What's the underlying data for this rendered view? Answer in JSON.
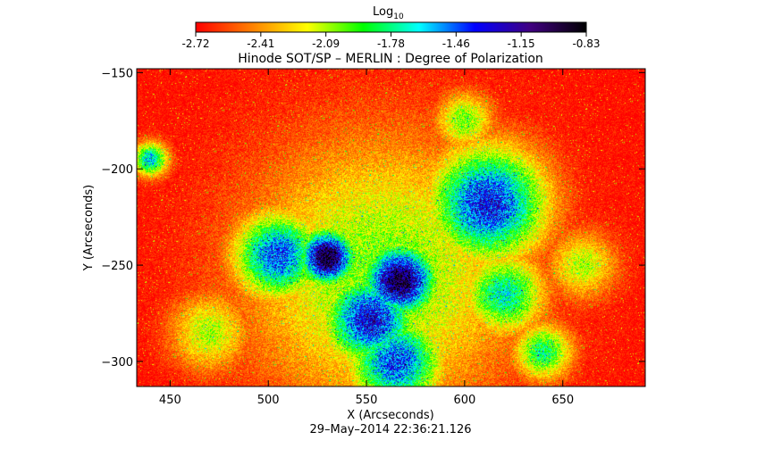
{
  "colorbar": {
    "title_main": "Log",
    "title_sub": "10",
    "ticks": [
      "-2.72",
      "-2.41",
      "-2.09",
      "-1.78",
      "-1.46",
      "-1.15",
      "-0.83"
    ],
    "range": [
      -2.72,
      -0.83
    ],
    "colormap": [
      "#ff0000",
      "#ff7f00",
      "#ffff00",
      "#00ff00",
      "#00ffff",
      "#0000ff",
      "#400080",
      "#000000"
    ]
  },
  "chart_data": {
    "type": "heatmap",
    "title": "Hinode SOT/SP – MERLIN : Degree of Polarization",
    "xlabel": "X (Arcseconds)",
    "ylabel": "Y (Arcseconds)",
    "xlim": [
      433,
      692
    ],
    "ylim": [
      -313,
      -148
    ],
    "xticks": [
      450,
      500,
      550,
      600,
      650
    ],
    "yticks": [
      -150,
      -200,
      -250,
      -300
    ],
    "value_label": "Log10 degree of polarization",
    "value_range": [
      -2.72,
      -0.83
    ],
    "background_level": -2.7,
    "features": [
      {
        "x": 558,
        "y": -255,
        "sigma": 48,
        "peak": -2.0
      },
      {
        "x": 530,
        "y": -246,
        "sigma": 10,
        "peak": -0.9
      },
      {
        "x": 567,
        "y": -258,
        "sigma": 13,
        "peak": -0.95
      },
      {
        "x": 552,
        "y": -278,
        "sigma": 16,
        "peak": -1.25
      },
      {
        "x": 612,
        "y": -218,
        "sigma": 20,
        "peak": -1.3
      },
      {
        "x": 505,
        "y": -245,
        "sigma": 15,
        "peak": -1.4
      },
      {
        "x": 620,
        "y": -265,
        "sigma": 14,
        "peak": -1.7
      },
      {
        "x": 565,
        "y": -300,
        "sigma": 16,
        "peak": -1.4
      },
      {
        "x": 440,
        "y": -195,
        "sigma": 6,
        "peak": -1.6
      },
      {
        "x": 600,
        "y": -175,
        "sigma": 10,
        "peak": -2.0
      },
      {
        "x": 660,
        "y": -250,
        "sigma": 12,
        "peak": -2.1
      },
      {
        "x": 470,
        "y": -285,
        "sigma": 14,
        "peak": -2.1
      },
      {
        "x": 640,
        "y": -295,
        "sigma": 10,
        "peak": -1.8
      }
    ],
    "timestamp": "29–May–2014 22:36:21.126"
  }
}
